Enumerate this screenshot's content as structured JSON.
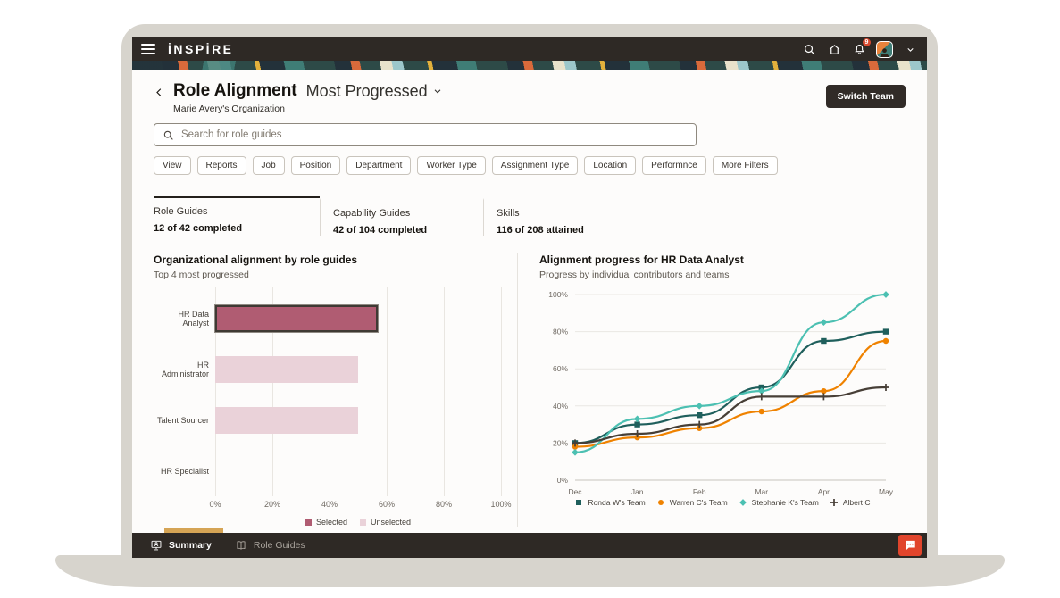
{
  "topbar": {
    "logo": "İNSPİRE",
    "notification_count": "9"
  },
  "header": {
    "title": "Role Alignment",
    "view_selector": "Most Progressed",
    "subtitle": "Marie Avery's Organization",
    "switch_team_label": "Switch Team"
  },
  "search": {
    "placeholder": "Search for role guides"
  },
  "filters": [
    "View",
    "Reports",
    "Job",
    "Position",
    "Department",
    "Worker Type",
    "Assignment Type",
    "Location",
    "Performnce",
    "More Filters"
  ],
  "tabs": [
    {
      "label": "Role Guides",
      "value": "12 of 42 completed",
      "active": true
    },
    {
      "label": "Capability Guides",
      "value": "42 of 104 completed",
      "active": false
    },
    {
      "label": "Skills",
      "value": "116 of 208 attained",
      "active": false
    }
  ],
  "chart_data": [
    {
      "type": "bar",
      "orientation": "horizontal",
      "title": "Organizational alignment by role guides",
      "subtitle": "Top 4 most progressed",
      "categories": [
        "HR Data Analyst",
        "HR Administrator",
        "Talent Sourcer",
        "HR Specialist"
      ],
      "values": [
        57,
        50,
        50,
        0
      ],
      "selected_index": 0,
      "xlim": [
        0,
        100
      ],
      "x_ticks": [
        "0%",
        "20%",
        "40%",
        "60%",
        "80%",
        "100%"
      ],
      "colors": {
        "selected": "#b05c72",
        "unselected": "#ead2d9"
      },
      "legend": [
        {
          "label": "Selected",
          "color": "#b05c72"
        },
        {
          "label": "Unselected",
          "color": "#ead2d9"
        }
      ]
    },
    {
      "type": "line",
      "title": "Alignment progress for HR Data Analyst",
      "subtitle": "Progress by individual contributors and teams",
      "x": [
        "Dec",
        "Jan",
        "Feb",
        "Mar",
        "Apr",
        "May"
      ],
      "ylim": [
        0,
        100
      ],
      "y_ticks": [
        "0%",
        "20%",
        "40%",
        "60%",
        "80%",
        "100%"
      ],
      "legend_position": "bottom",
      "series": [
        {
          "name": "Ronda W's Team",
          "color": "#1f5f5c",
          "marker": "square",
          "values": [
            20,
            30,
            35,
            50,
            75,
            80
          ]
        },
        {
          "name": "Warren C's Team",
          "color": "#ef8200",
          "marker": "circle",
          "values": [
            18,
            23,
            28,
            37,
            48,
            75
          ]
        },
        {
          "name": "Stephanie K's Team",
          "color": "#4cc0b2",
          "marker": "diamond",
          "values": [
            15,
            33,
            40,
            48,
            85,
            100
          ]
        },
        {
          "name": "Albert C",
          "color": "#473f37",
          "marker": "plus",
          "values": [
            20,
            25,
            30,
            45,
            45,
            50
          ]
        }
      ]
    }
  ],
  "bottombar": {
    "items": [
      {
        "label": "Summary",
        "active": true
      },
      {
        "label": "Role Guides",
        "active": false
      }
    ]
  }
}
